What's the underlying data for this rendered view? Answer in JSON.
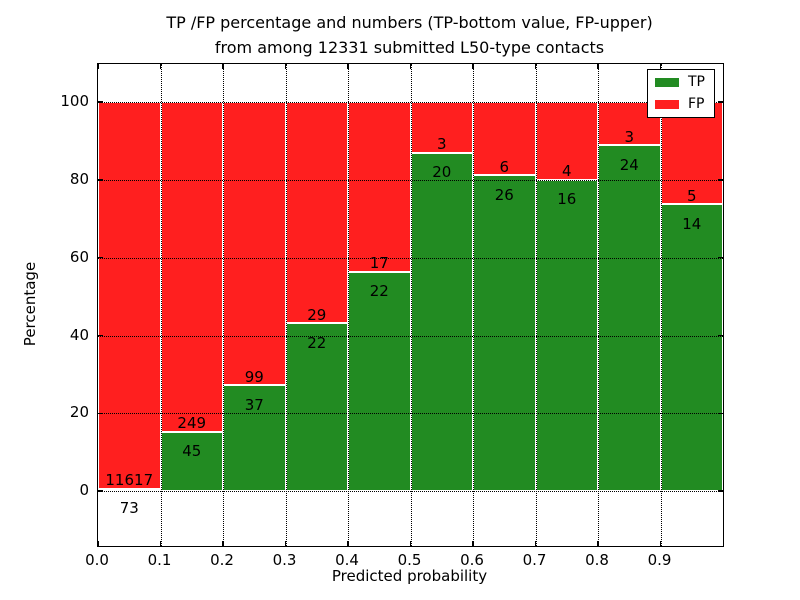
{
  "figure": {
    "title_line1": "TP /FP percentage and numbers (TP-bottom value, FP-upper)",
    "title_line2": "from among 12331 submitted L50-type contacts"
  },
  "axes": {
    "xlabel": "Predicted probability",
    "ylabel": "Percentage",
    "x_ticks": [
      "0.0",
      "0.1",
      "0.2",
      "0.3",
      "0.4",
      "0.5",
      "0.6",
      "0.7",
      "0.8",
      "0.9"
    ],
    "y_ticks": [
      "0",
      "20",
      "40",
      "60",
      "80",
      "100"
    ]
  },
  "legend": {
    "position": "upper right",
    "entries": [
      {
        "label": "TP",
        "color": "#228b22"
      },
      {
        "label": "FP",
        "color": "#ff1f1f"
      }
    ]
  },
  "chart_data": {
    "type": "bar",
    "subtype": "stacked-percentage-histogram",
    "title": "TP /FP percentage and numbers (TP-bottom value, FP-upper) from among 12331 submitted L50-type contacts",
    "xlabel": "Predicted probability",
    "ylabel": "Percentage",
    "total_submitted": 12331,
    "bin_width": 0.1,
    "categories": [
      "0.0-0.1",
      "0.1-0.2",
      "0.2-0.3",
      "0.3-0.4",
      "0.4-0.5",
      "0.5-0.6",
      "0.6-0.7",
      "0.7-0.8",
      "0.8-0.9",
      "0.9-1.0"
    ],
    "series": [
      {
        "name": "TP",
        "color": "#228b22",
        "counts": [
          73,
          45,
          37,
          22,
          22,
          20,
          26,
          16,
          24,
          14
        ]
      },
      {
        "name": "FP",
        "color": "#ff1f1f",
        "counts": [
          11617,
          249,
          99,
          29,
          17,
          3,
          6,
          4,
          3,
          5
        ]
      }
    ],
    "tp_percent": [
      0.62,
      15.31,
      27.21,
      43.14,
      56.41,
      86.96,
      81.25,
      80.0,
      88.89,
      73.68
    ],
    "xlim": [
      0.0,
      1.0
    ],
    "ylim": [
      -14.1,
      109.8
    ],
    "y_gridlines": [
      0,
      20,
      40,
      60,
      80,
      100
    ],
    "x_gridlines": [
      0.1,
      0.2,
      0.3,
      0.4,
      0.5,
      0.6,
      0.7,
      0.8,
      0.9
    ],
    "grid_style": "dotted",
    "legend_position": "upper right"
  }
}
